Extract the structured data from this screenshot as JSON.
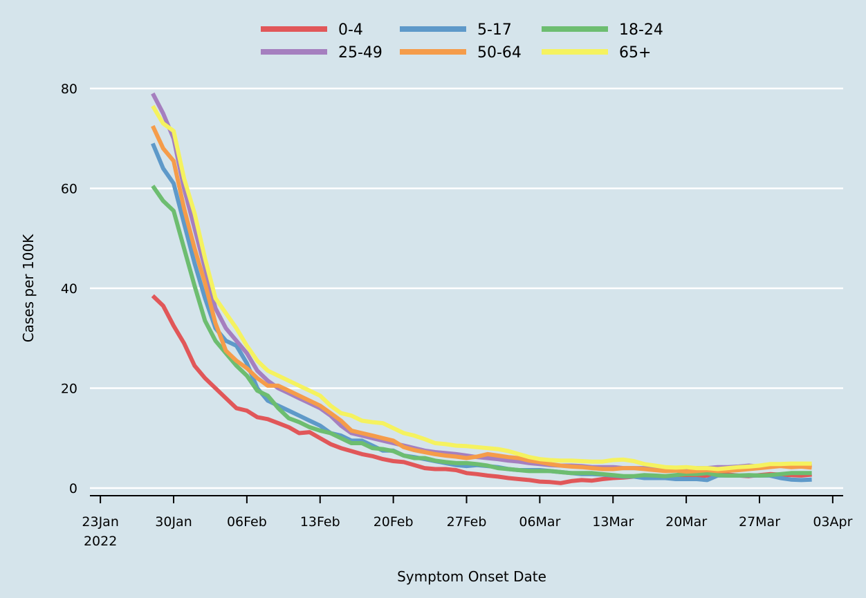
{
  "chart_data": {
    "type": "line",
    "xlabel": "Symptom Onset Date",
    "ylabel": "Cases per 100K",
    "ylim": [
      0,
      80
    ],
    "xlim": [
      "2022-01-22",
      "2022-04-04"
    ],
    "grid": true,
    "legend_position": "top",
    "x_ticks": [
      {
        "date": "2022-01-23",
        "label": "23Jan",
        "sublabel": "2022"
      },
      {
        "date": "2022-01-30",
        "label": "30Jan",
        "sublabel": ""
      },
      {
        "date": "2022-02-06",
        "label": "06Feb",
        "sublabel": ""
      },
      {
        "date": "2022-02-13",
        "label": "13Feb",
        "sublabel": ""
      },
      {
        "date": "2022-02-20",
        "label": "20Feb",
        "sublabel": ""
      },
      {
        "date": "2022-02-27",
        "label": "27Feb",
        "sublabel": ""
      },
      {
        "date": "2022-03-06",
        "label": "06Mar",
        "sublabel": ""
      },
      {
        "date": "2022-03-13",
        "label": "13Mar",
        "sublabel": ""
      },
      {
        "date": "2022-03-20",
        "label": "20Mar",
        "sublabel": ""
      },
      {
        "date": "2022-03-27",
        "label": "27Mar",
        "sublabel": ""
      },
      {
        "date": "2022-04-03",
        "label": "03Apr",
        "sublabel": ""
      }
    ],
    "y_ticks": [
      0,
      20,
      40,
      60,
      80
    ],
    "x": [
      "2022-01-28",
      "2022-01-29",
      "2022-01-30",
      "2022-01-31",
      "2022-02-01",
      "2022-02-02",
      "2022-02-03",
      "2022-02-04",
      "2022-02-05",
      "2022-02-06",
      "2022-02-07",
      "2022-02-08",
      "2022-02-09",
      "2022-02-10",
      "2022-02-11",
      "2022-02-12",
      "2022-02-13",
      "2022-02-14",
      "2022-02-15",
      "2022-02-16",
      "2022-02-17",
      "2022-02-18",
      "2022-02-19",
      "2022-02-20",
      "2022-02-21",
      "2022-02-22",
      "2022-02-23",
      "2022-02-24",
      "2022-02-25",
      "2022-02-26",
      "2022-02-27",
      "2022-02-28",
      "2022-03-01",
      "2022-03-02",
      "2022-03-03",
      "2022-03-04",
      "2022-03-05",
      "2022-03-06",
      "2022-03-07",
      "2022-03-08",
      "2022-03-09",
      "2022-03-10",
      "2022-03-11",
      "2022-03-12",
      "2022-03-13",
      "2022-03-14",
      "2022-03-15",
      "2022-03-16",
      "2022-03-17",
      "2022-03-18",
      "2022-03-19",
      "2022-03-20",
      "2022-03-21",
      "2022-03-22",
      "2022-03-23",
      "2022-03-24",
      "2022-03-25",
      "2022-03-26",
      "2022-03-27",
      "2022-03-28",
      "2022-03-29",
      "2022-03-30",
      "2022-03-31",
      "2022-04-01"
    ],
    "series": [
      {
        "name": "0-4",
        "color": "#e15759",
        "values": [
          38.5,
          36.5,
          32.5,
          29,
          24.5,
          22,
          20,
          18,
          16,
          15.5,
          14.2,
          13.8,
          13,
          12.2,
          11,
          11.2,
          10,
          8.8,
          8,
          7.4,
          6.8,
          6.4,
          5.8,
          5.4,
          5.2,
          4.6,
          4,
          3.8,
          3.8,
          3.6,
          3,
          2.8,
          2.5,
          2.3,
          2,
          1.8,
          1.6,
          1.3,
          1.2,
          1,
          1.4,
          1.6,
          1.5,
          1.8,
          2,
          2.1,
          2.3,
          2.3,
          2.4,
          2.2,
          2.3,
          2.5,
          2.4,
          2.5,
          2.7,
          2.7,
          2.5,
          2.4,
          2.6,
          2.8,
          2.7,
          2.6,
          2.5,
          2.7
        ]
      },
      {
        "name": "5-17",
        "color": "#5e99c9",
        "values": [
          69,
          64,
          61,
          53,
          45,
          38,
          32,
          29.5,
          28.5,
          25,
          20,
          17.5,
          16.5,
          15.5,
          14.5,
          13.5,
          12.5,
          11,
          10.5,
          9.5,
          9.5,
          8.5,
          7.5,
          7.5,
          6.5,
          6.2,
          5.8,
          5.4,
          5,
          4.6,
          4.4,
          4.6,
          4.4,
          4.2,
          3.8,
          3.6,
          3.6,
          3.6,
          3.4,
          3.2,
          3,
          2.8,
          2.8,
          2.7,
          2.5,
          2.3,
          2.3,
          2,
          2,
          2,
          1.8,
          1.8,
          1.8,
          1.6,
          2.5,
          2.5,
          2.5,
          2.5,
          2.5,
          2.5,
          2,
          1.7,
          1.6,
          1.7
        ]
      },
      {
        "name": "18-24",
        "color": "#6dbd70",
        "values": [
          60.5,
          57.5,
          55.5,
          48,
          40.5,
          33.5,
          29.5,
          27,
          24.5,
          22.5,
          19.5,
          18.5,
          16,
          14,
          13.2,
          12.2,
          11.5,
          11,
          10,
          9,
          9,
          8,
          7.8,
          7.4,
          6.5,
          6,
          6,
          5.5,
          5.2,
          5,
          5,
          4.8,
          4.5,
          4,
          3.8,
          3.6,
          3.4,
          3.4,
          3.4,
          3.2,
          3,
          3,
          3,
          2.8,
          2.6,
          2.4,
          2.4,
          2.6,
          2.5,
          2.4,
          2.6,
          2.8,
          2.8,
          3,
          2.6,
          2.5,
          2.5,
          2.6,
          2.5,
          2.6,
          2.8,
          3,
          3,
          3
        ]
      },
      {
        "name": "25-49",
        "color": "#a57fbf",
        "values": [
          79,
          75,
          70,
          60,
          52,
          44,
          36,
          32,
          29.5,
          27,
          23.5,
          21.5,
          20,
          19,
          18,
          17,
          16,
          14.5,
          12.5,
          11,
          10.5,
          10,
          9.5,
          9,
          8.5,
          8,
          7.5,
          7.2,
          7,
          6.8,
          6.5,
          6.2,
          6,
          5.8,
          5.5,
          5.3,
          5,
          4.8,
          4.6,
          4.5,
          4.5,
          4.4,
          4.2,
          4.2,
          4.2,
          4,
          4,
          4,
          3.9,
          3.8,
          3.9,
          3.9,
          4,
          4,
          4.2,
          4.2,
          4.3,
          4.5,
          4.3,
          4.4,
          4.5,
          4.5,
          4.5,
          4.4
        ]
      },
      {
        "name": "50-64",
        "color": "#f59c4a",
        "values": [
          72.5,
          68,
          65.5,
          56,
          48,
          41,
          33,
          27.5,
          25.5,
          24,
          22,
          20.5,
          20.5,
          19.5,
          18.5,
          17.5,
          16.5,
          15,
          13.5,
          11.5,
          11,
          10.5,
          10,
          9.5,
          8.2,
          7.6,
          7.2,
          6.8,
          6.5,
          6.3,
          6,
          6.3,
          6.8,
          6.5,
          6.2,
          6,
          5.5,
          5.2,
          4.8,
          4.5,
          4.3,
          4.2,
          4,
          3.8,
          3.8,
          4,
          4,
          3.8,
          3.6,
          3.4,
          3.5,
          3.3,
          3.4,
          3.6,
          3.4,
          3.5,
          3.6,
          3.8,
          4,
          4.2,
          4.4,
          4.2,
          4.3,
          4.1
        ]
      },
      {
        "name": "65+",
        "color": "#f5f25f",
        "values": [
          76.5,
          73,
          71.5,
          62,
          55,
          46,
          38,
          35,
          32,
          28.5,
          25.5,
          23.5,
          22.5,
          21.5,
          20.5,
          19.5,
          18.5,
          16.5,
          15,
          14.5,
          13.5,
          13.2,
          13,
          12,
          11,
          10.5,
          9.8,
          9,
          8.8,
          8.5,
          8.4,
          8.2,
          8,
          7.8,
          7.4,
          6.8,
          6.2,
          5.8,
          5.6,
          5.5,
          5.5,
          5.4,
          5.3,
          5.3,
          5.6,
          5.7,
          5.4,
          4.8,
          4.5,
          4.2,
          4.1,
          4.2,
          4,
          4,
          3.8,
          4,
          4.2,
          4.3,
          4.5,
          4.8,
          4.8,
          4.9,
          4.9,
          4.9
        ]
      }
    ]
  }
}
